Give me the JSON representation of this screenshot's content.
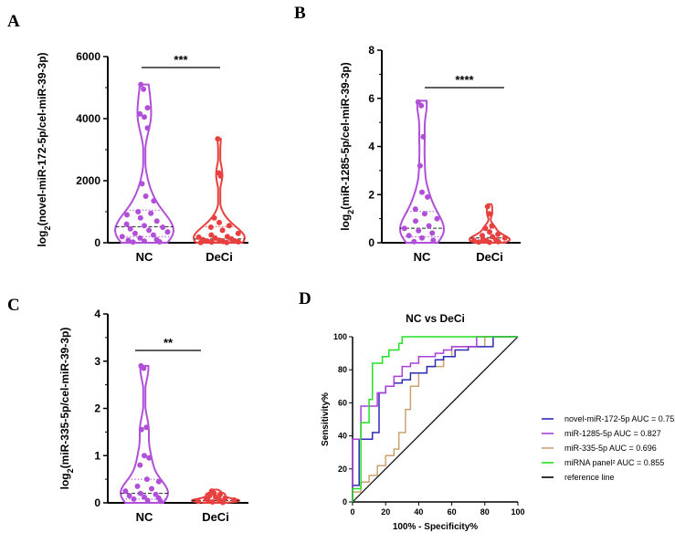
{
  "colors": {
    "nc": "#b14fd9",
    "deci": "#e8403f",
    "axis": "#000000"
  },
  "chart_data": [
    {
      "panel": "A",
      "type": "violin",
      "ylabel_pre": "log",
      "ylabel_sub": "2",
      "ylabel_post": "(novel-miR-172-5p/cel-miR-39-3p)",
      "ylim": [
        0,
        6000
      ],
      "yticks": [
        "0",
        "2000",
        "4000",
        "6000"
      ],
      "categories": [
        "NC",
        "DeCi"
      ],
      "significance": "***",
      "groups": [
        {
          "name": "NC",
          "max": 5100,
          "median": 520,
          "q1": 200,
          "q3": 1050,
          "points": [
            5100,
            4950,
            4350,
            4150,
            4050,
            3700,
            1900,
            1500,
            1350,
            1000,
            950,
            900,
            800,
            700,
            600,
            550,
            500,
            450,
            400,
            350,
            300,
            250,
            200,
            150,
            100,
            80,
            50,
            30,
            20
          ]
        },
        {
          "name": "DeCi",
          "max": 3350,
          "median": 120,
          "q1": 30,
          "q3": 520,
          "points": [
            3350,
            2250,
            2150,
            800,
            650,
            550,
            500,
            400,
            300,
            250,
            200,
            180,
            150,
            120,
            100,
            80,
            60,
            50,
            40,
            30,
            20,
            10,
            5
          ]
        }
      ]
    },
    {
      "panel": "B",
      "type": "violin",
      "ylabel_pre": "log",
      "ylabel_sub": "2",
      "ylabel_post": "(miR-1285-5p/cel-miR-39-3p)",
      "ylim": [
        0,
        8
      ],
      "yticks": [
        "0",
        "2",
        "4",
        "6",
        "8"
      ],
      "categories": [
        "NC",
        "DeCi"
      ],
      "significance": "****",
      "groups": [
        {
          "name": "NC",
          "max": 5.9,
          "median": 0.6,
          "q1": 0.25,
          "q3": 1.3,
          "points": [
            5.85,
            5.7,
            4.4,
            3.2,
            2.1,
            1.9,
            1.4,
            1.2,
            1.0,
            0.9,
            0.7,
            0.6,
            0.5,
            0.4,
            0.3,
            0.2,
            0.1,
            0.05
          ]
        },
        {
          "name": "DeCi",
          "max": 1.6,
          "median": 0.2,
          "q1": 0.05,
          "q3": 0.6,
          "points": [
            1.5,
            1.2,
            0.7,
            0.6,
            0.45,
            0.35,
            0.3,
            0.25,
            0.2,
            0.15,
            0.12,
            0.1,
            0.08,
            0.05,
            0.03,
            0.02
          ]
        }
      ]
    },
    {
      "panel": "C",
      "type": "violin",
      "ylabel_pre": "log",
      "ylabel_sub": "2",
      "ylabel_post": "(miR-335-5p/cel-miR-39-3p)",
      "ylim": [
        0,
        4
      ],
      "yticks": [
        "0",
        "1",
        "2",
        "3",
        "4"
      ],
      "categories": [
        "NC",
        "DeCi"
      ],
      "significance": "**",
      "groups": [
        {
          "name": "NC",
          "max": 2.9,
          "median": 0.2,
          "q1": 0.08,
          "q3": 0.5,
          "points": [
            2.9,
            2.85,
            1.6,
            1.55,
            1.0,
            0.95,
            0.8,
            0.5,
            0.45,
            0.35,
            0.3,
            0.25,
            0.2,
            0.18,
            0.15,
            0.12,
            0.1,
            0.08,
            0.05,
            0.03
          ]
        },
        {
          "name": "DeCi",
          "max": 0.28,
          "median": 0.05,
          "q1": 0.02,
          "q3": 0.12,
          "points": [
            0.25,
            0.2,
            0.18,
            0.15,
            0.12,
            0.1,
            0.08,
            0.07,
            0.06,
            0.05,
            0.04,
            0.03,
            0.02,
            0.01
          ]
        }
      ]
    },
    {
      "panel": "D",
      "type": "line",
      "title": "NC vs DeCi",
      "xlabel": "100% - Specificity%",
      "ylabel": "Sensitivity%",
      "xlim": [
        0,
        100
      ],
      "ylim": [
        0,
        100
      ],
      "xticks": [
        "0",
        "20",
        "40",
        "60",
        "80",
        "100"
      ],
      "yticks": [
        "0",
        "20",
        "40",
        "60",
        "80",
        "100"
      ],
      "legend_position": "right",
      "series": [
        {
          "name": "novel-miR-172-5p AUC = 0.752",
          "color": "#2b2bb8",
          "x": [
            0,
            0,
            4,
            4,
            12,
            12,
            16,
            16,
            20,
            20,
            25,
            25,
            30,
            30,
            35,
            35,
            45,
            45,
            50,
            50,
            55,
            55,
            62,
            62,
            70,
            70,
            85,
            85,
            100
          ],
          "y": [
            0,
            10,
            10,
            38,
            38,
            42,
            42,
            66,
            66,
            70,
            70,
            72,
            72,
            74,
            74,
            78,
            78,
            82,
            82,
            86,
            86,
            88,
            88,
            92,
            92,
            94,
            94,
            100,
            100
          ]
        },
        {
          "name": "miR-1285-5p AUC = 0.827",
          "color": "#a93ed8",
          "x": [
            0,
            0,
            5,
            5,
            15,
            15,
            20,
            20,
            25,
            25,
            30,
            30,
            35,
            35,
            40,
            40,
            50,
            50,
            55,
            55,
            60,
            60,
            75,
            75,
            100
          ],
          "y": [
            0,
            38,
            38,
            58,
            58,
            66,
            66,
            70,
            70,
            76,
            76,
            82,
            82,
            84,
            84,
            88,
            88,
            90,
            90,
            92,
            92,
            94,
            94,
            100,
            100
          ]
        },
        {
          "name": "miR-335-5p AUC = 0.696",
          "color": "#c8a371",
          "x": [
            0,
            0,
            5,
            5,
            10,
            10,
            15,
            15,
            20,
            20,
            25,
            25,
            28,
            28,
            32,
            32,
            35,
            35,
            40,
            40,
            45,
            45,
            55,
            55,
            60,
            60,
            80,
            80,
            100
          ],
          "y": [
            0,
            6,
            6,
            12,
            12,
            16,
            16,
            22,
            22,
            28,
            28,
            32,
            32,
            42,
            42,
            56,
            56,
            70,
            70,
            78,
            78,
            82,
            82,
            88,
            88,
            94,
            94,
            100,
            100
          ]
        },
        {
          "name": "miRNA panel² AUC = 0.855",
          "color": "#22e022",
          "x": [
            0,
            0,
            5,
            5,
            10,
            10,
            12,
            12,
            18,
            18,
            22,
            22,
            28,
            28,
            30,
            30,
            40,
            40,
            100
          ],
          "y": [
            0,
            8,
            8,
            48,
            48,
            62,
            62,
            84,
            84,
            88,
            88,
            92,
            92,
            96,
            96,
            100,
            100,
            100,
            100
          ]
        },
        {
          "name": "reference line",
          "color": "#000000",
          "x": [
            0,
            100
          ],
          "y": [
            0,
            100
          ]
        }
      ]
    }
  ]
}
